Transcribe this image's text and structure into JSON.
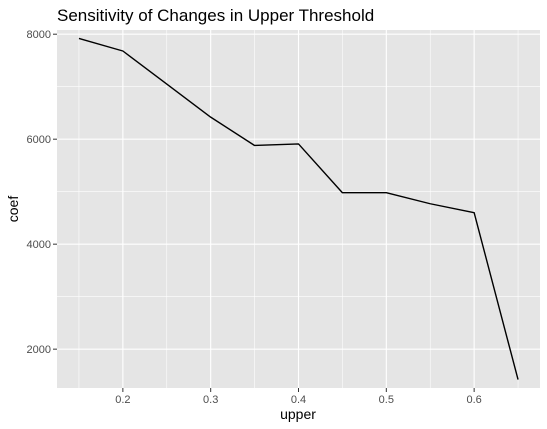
{
  "chart_data": {
    "type": "line",
    "title": "Sensitivity of Changes in Upper Threshold",
    "xlabel": "upper",
    "ylabel": "coef",
    "x": [
      0.15,
      0.2,
      0.25,
      0.3,
      0.35,
      0.4,
      0.45,
      0.5,
      0.55,
      0.6,
      0.65
    ],
    "series": [
      {
        "values": [
          7920,
          7680,
          7050,
          6420,
          5880,
          5910,
          4980,
          4980,
          4770,
          4600,
          1420
        ]
      }
    ],
    "xlim": [
      0.125,
      0.675
    ],
    "ylim": [
      1260,
      8080
    ],
    "xticks": [
      0.2,
      0.3,
      0.4,
      0.5,
      0.6
    ],
    "xtick_labels": [
      "0.2",
      "0.3",
      "0.4",
      "0.5",
      "0.6"
    ],
    "yticks": [
      2000,
      4000,
      6000,
      8000
    ],
    "ytick_labels": [
      "2000",
      "4000",
      "6000",
      "8000"
    ],
    "grid": true,
    "legend": "none",
    "colors": {
      "panel_background": "#e5e5e5",
      "grid": "#ffffff",
      "line": "#000000",
      "tick_label": "#4d4d4d"
    }
  }
}
